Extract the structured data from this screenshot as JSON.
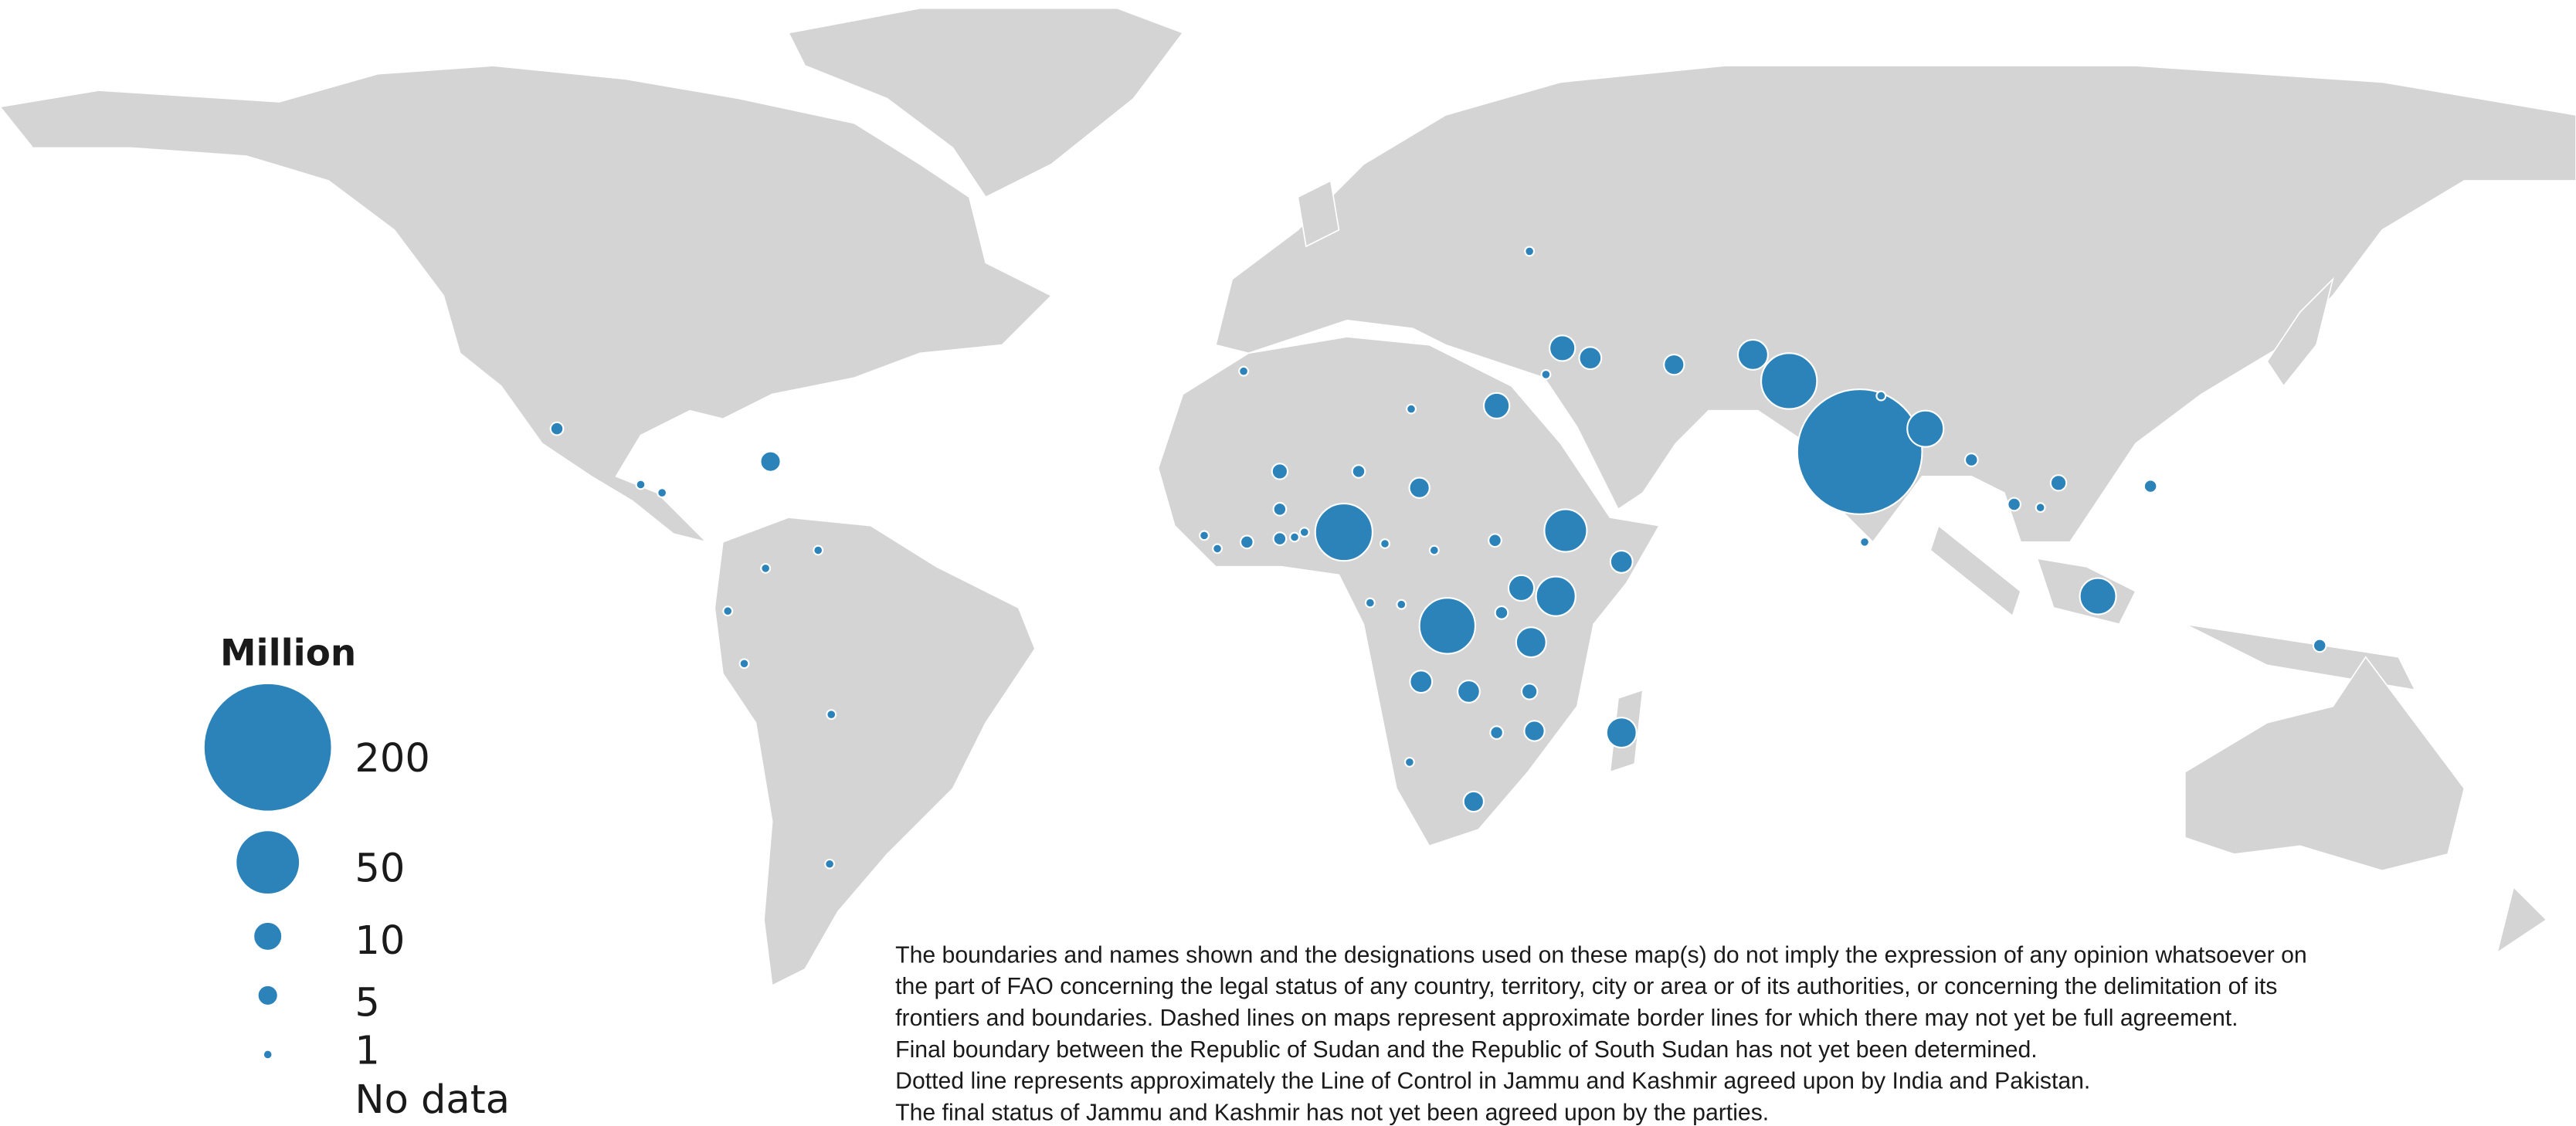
{
  "legend": {
    "title": "Million",
    "items": [
      200,
      50,
      10,
      5,
      1
    ],
    "no_data": "No data"
  },
  "values": [
    190,
    38,
    16,
    11,
    5,
    6,
    8,
    8,
    40,
    38,
    22,
    19,
    8,
    11,
    11,
    16,
    5,
    2,
    2,
    3,
    2,
    2,
    1,
    1,
    1,
    1,
    6,
    5,
    2,
    3,
    5,
    6,
    6,
    2,
    3,
    5,
    2,
    1,
    2,
    2,
    2,
    1,
    1,
    1,
    1,
    2,
    1,
    1,
    1,
    1,
    1,
    1,
    1,
    1,
    1,
    1,
    2,
    1,
    1,
    1,
    1,
    1
  ],
  "disclaimer": [
    "The boundaries and names shown and the designations used on these map(s) do not imply the expression of any opinion whatsoever on",
    "the part of FAO concerning the legal status of any country, territory, city or area or of its authorities, or concerning the delimitation of its",
    "frontiers and boundaries. Dashed lines on maps represent approximate border lines for which there may not yet be full agreement.",
    "Final boundary between the Republic of Sudan and the Republic of South Sudan has not yet been determined.",
    "Dotted line represents approximately the Line of Control in Jammu and Kashmir agreed upon by India and Pakistan.",
    "The final status of Jammu and Kashmir has not yet been agreed upon by the parties."
  ]
}
